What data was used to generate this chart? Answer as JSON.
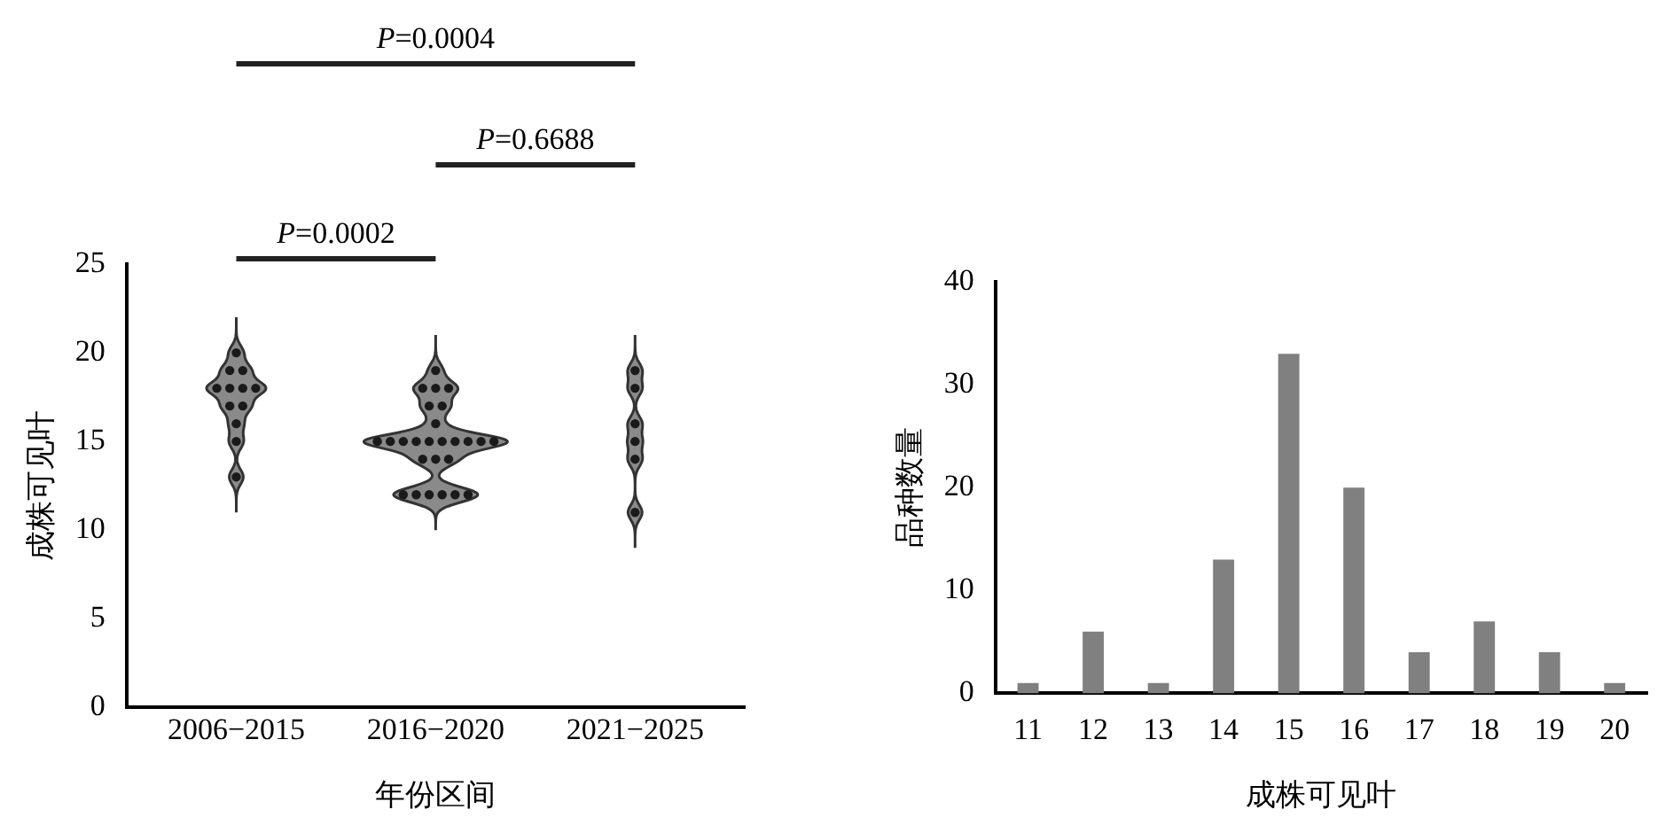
{
  "chart_data": [
    {
      "type": "scatter",
      "xlabel": "年份区间",
      "ylabel": "成株可见叶",
      "categories": [
        "2006−2015",
        "2016−2020",
        "2021−2025"
      ],
      "series": [
        {
          "color": "#1a1a1a",
          "x": [
            "2006−2015",
            "2006−2015",
            "2006−2015",
            "2006−2015",
            "2006−2015",
            "2006−2015",
            "2006−2015",
            "2006−2015",
            "2006−2015",
            "2006−2015",
            "2006−2015",
            "2006−2015",
            "2016−2020",
            "2016−2020",
            "2016−2020",
            "2016−2020",
            "2016−2020",
            "2016−2020",
            "2016−2020",
            "2016−2020",
            "2016−2020",
            "2016−2020",
            "2016−2020",
            "2016−2020",
            "2016−2020",
            "2016−2020",
            "2016−2020",
            "2016−2020",
            "2016−2020",
            "2016−2020",
            "2016−2020",
            "2016−2020",
            "2016−2020",
            "2016−2020",
            "2016−2020",
            "2016−2020",
            "2016−2020",
            "2016−2020",
            "2021−2025",
            "2021−2025",
            "2021−2025",
            "2021−2025",
            "2021−2025",
            "2021−2025"
          ],
          "values": [
            20,
            19,
            19,
            18,
            18,
            18,
            18,
            17,
            17,
            16,
            15,
            13,
            19,
            18,
            18,
            18,
            17,
            17,
            16,
            15,
            15,
            15,
            15,
            15,
            15,
            15,
            15,
            15,
            15,
            14,
            14,
            14,
            12,
            12,
            12,
            12,
            12,
            12,
            19,
            18,
            16,
            15,
            14,
            11
          ]
        }
      ],
      "ylim": [
        0,
        25
      ],
      "yticks": [
        0,
        5,
        10,
        15,
        20,
        25
      ],
      "marker": "circle",
      "grid": false,
      "legend": false,
      "annotations": [
        "P=0.0004",
        "P=0.6688",
        "P=0.0002"
      ]
    },
    {
      "type": "bar",
      "xlabel": "成株可见叶",
      "ylabel": "品种数量",
      "categories": [
        "11",
        "12",
        "13",
        "14",
        "15",
        "16",
        "17",
        "18",
        "19",
        "20"
      ],
      "values": [
        1,
        6,
        1,
        13,
        33,
        20,
        4,
        7,
        4,
        1
      ],
      "color": "#808080",
      "ylim": [
        0,
        40
      ],
      "yticks": [
        0,
        10,
        20,
        30,
        40
      ],
      "grid": false,
      "legend": false
    }
  ]
}
